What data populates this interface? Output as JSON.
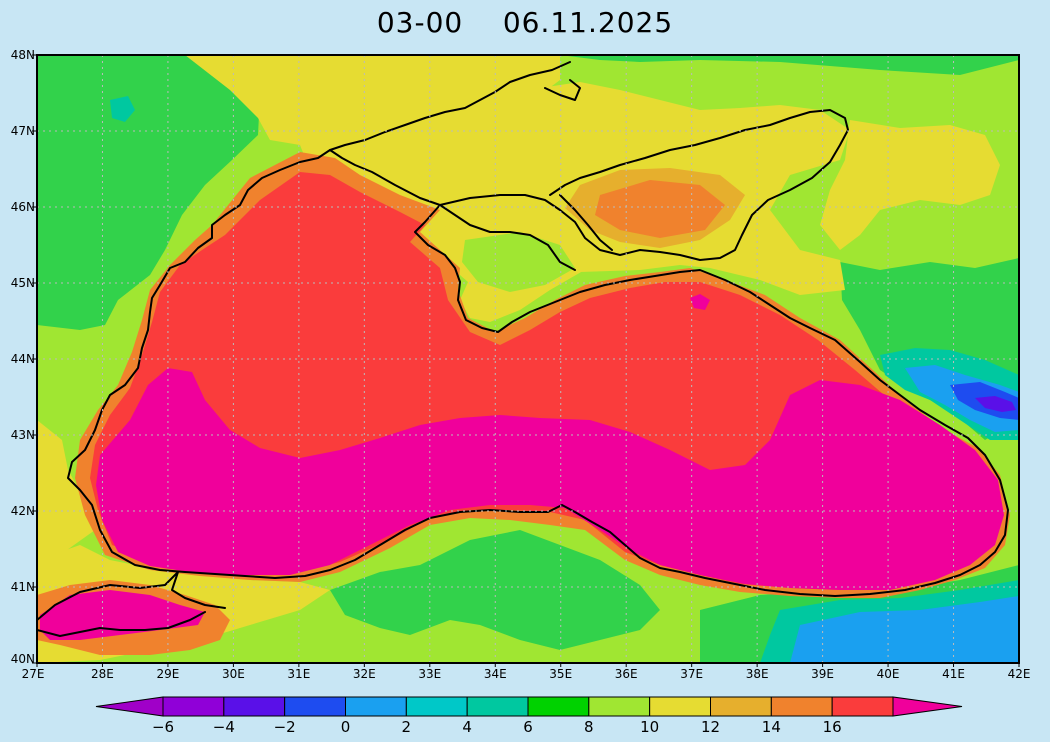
{
  "title": {
    "time": "03-00",
    "date": "06.11.2025"
  },
  "lat_ticks": [
    "48N",
    "47N",
    "46N",
    "45N",
    "44N",
    "43N",
    "42N",
    "41N",
    "40N"
  ],
  "lon_ticks": [
    "27E",
    "28E",
    "29E",
    "30E",
    "31E",
    "32E",
    "33E",
    "34E",
    "35E",
    "36E",
    "37E",
    "38E",
    "39E",
    "40E",
    "41E",
    "42E"
  ],
  "colorbar": {
    "labels": [
      "-6",
      "-4",
      "-2",
      "0",
      "2",
      "4",
      "6",
      "8",
      "10",
      "12",
      "14",
      "16"
    ],
    "colors": [
      "#9000d8",
      "#5a10e8",
      "#1e4cf0",
      "#1aa0f0",
      "#00c8c8",
      "#00c8a0",
      "#00d200",
      "#a0e632",
      "#e6dc32",
      "#e6af2d",
      "#f0822d",
      "#fa3c3c"
    ],
    "under_color": "#a000c8",
    "over_color": "#f0009b"
  },
  "palette": {
    "land_green": "#32d24b",
    "land_lime": "#a0e632",
    "land_yellow": "#e6dc32",
    "sea_orange": "#f0822d",
    "sea_red": "#fa3c3c",
    "sea_magenta": "#f0009b",
    "coast_line": "#000000",
    "grid_line": "#bbbbbb",
    "frame_bg": "#c8e6f4"
  }
}
